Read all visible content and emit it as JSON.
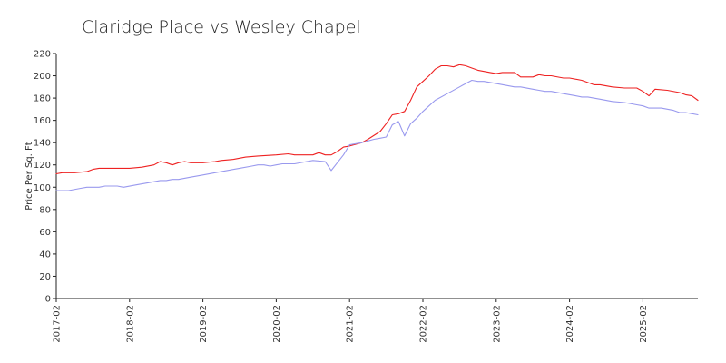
{
  "chart_data": {
    "type": "line",
    "title": "Claridge Place vs Wesley Chapel",
    "xlabel": "",
    "ylabel": "Price Per Sq. Ft",
    "ylim": [
      0,
      220
    ],
    "yticks": [
      0,
      20,
      40,
      60,
      80,
      100,
      120,
      140,
      160,
      180,
      200,
      220
    ],
    "x_tick_labels": [
      "2017-02",
      "2018-02",
      "2019-02",
      "2020-02",
      "2021-02",
      "2022-02",
      "2023-02",
      "2024-02",
      "2025-02"
    ],
    "x_tick_positions": [
      "2017-02",
      "2018-02",
      "2019-02",
      "2020-02",
      "2021-02",
      "2022-02",
      "2023-02",
      "2024-02",
      "2025-02"
    ],
    "x_range": [
      "2017-02",
      "2025-11"
    ],
    "grid": false,
    "legend": "none",
    "series": [
      {
        "color": "#ee2222",
        "points": [
          [
            "2017-02",
            112
          ],
          [
            "2017-03",
            113
          ],
          [
            "2017-05",
            113
          ],
          [
            "2017-07",
            114
          ],
          [
            "2017-08",
            116
          ],
          [
            "2017-09",
            117
          ],
          [
            "2017-12",
            117
          ],
          [
            "2018-02",
            117
          ],
          [
            "2018-04",
            118
          ],
          [
            "2018-06",
            120
          ],
          [
            "2018-07",
            123
          ],
          [
            "2018-08",
            122
          ],
          [
            "2018-09",
            120
          ],
          [
            "2018-10",
            122
          ],
          [
            "2018-11",
            123
          ],
          [
            "2018-12",
            122
          ],
          [
            "2019-02",
            122
          ],
          [
            "2019-04",
            123
          ],
          [
            "2019-05",
            124
          ],
          [
            "2019-07",
            125
          ],
          [
            "2019-09",
            127
          ],
          [
            "2019-11",
            128
          ],
          [
            "2020-02",
            129
          ],
          [
            "2020-04",
            130
          ],
          [
            "2020-05",
            129
          ],
          [
            "2020-08",
            129
          ],
          [
            "2020-09",
            131
          ],
          [
            "2020-10",
            129
          ],
          [
            "2020-11",
            129
          ],
          [
            "2020-12",
            132
          ],
          [
            "2021-01",
            136
          ],
          [
            "2021-02",
            137
          ],
          [
            "2021-04",
            140
          ],
          [
            "2021-05",
            143
          ],
          [
            "2021-07",
            150
          ],
          [
            "2021-08",
            157
          ],
          [
            "2021-09",
            165
          ],
          [
            "2021-10",
            166
          ],
          [
            "2021-11",
            168
          ],
          [
            "2021-12",
            178
          ],
          [
            "2022-01",
            190
          ],
          [
            "2022-02",
            195
          ],
          [
            "2022-03",
            200
          ],
          [
            "2022-04",
            206
          ],
          [
            "2022-05",
            209
          ],
          [
            "2022-06",
            209
          ],
          [
            "2022-07",
            208
          ],
          [
            "2022-08",
            210
          ],
          [
            "2022-09",
            209
          ],
          [
            "2022-10",
            207
          ],
          [
            "2022-11",
            205
          ],
          [
            "2023-01",
            203
          ],
          [
            "2023-02",
            202
          ],
          [
            "2023-03",
            203
          ],
          [
            "2023-05",
            203
          ],
          [
            "2023-06",
            199
          ],
          [
            "2023-08",
            199
          ],
          [
            "2023-09",
            201
          ],
          [
            "2023-10",
            200
          ],
          [
            "2023-11",
            200
          ],
          [
            "2024-01",
            198
          ],
          [
            "2024-02",
            198
          ],
          [
            "2024-04",
            196
          ],
          [
            "2024-06",
            192
          ],
          [
            "2024-07",
            192
          ],
          [
            "2024-09",
            190
          ],
          [
            "2024-11",
            189
          ],
          [
            "2025-01",
            189
          ],
          [
            "2025-02",
            186
          ],
          [
            "2025-03",
            182
          ],
          [
            "2025-04",
            188
          ],
          [
            "2025-06",
            187
          ],
          [
            "2025-08",
            185
          ],
          [
            "2025-09",
            183
          ],
          [
            "2025-10",
            182
          ],
          [
            "2025-11",
            178
          ]
        ]
      },
      {
        "color": "#9999ee",
        "points": [
          [
            "2017-02",
            97
          ],
          [
            "2017-04",
            97
          ],
          [
            "2017-06",
            99
          ],
          [
            "2017-07",
            100
          ],
          [
            "2017-09",
            100
          ],
          [
            "2017-10",
            101
          ],
          [
            "2017-12",
            101
          ],
          [
            "2018-01",
            100
          ],
          [
            "2018-03",
            102
          ],
          [
            "2018-05",
            104
          ],
          [
            "2018-07",
            106
          ],
          [
            "2018-08",
            106
          ],
          [
            "2018-09",
            107
          ],
          [
            "2018-10",
            107
          ],
          [
            "2018-12",
            109
          ],
          [
            "2019-02",
            111
          ],
          [
            "2019-05",
            114
          ],
          [
            "2019-08",
            117
          ],
          [
            "2019-10",
            119
          ],
          [
            "2019-11",
            120
          ],
          [
            "2019-12",
            120
          ],
          [
            "2020-01",
            119
          ],
          [
            "2020-02",
            120
          ],
          [
            "2020-03",
            121
          ],
          [
            "2020-05",
            121
          ],
          [
            "2020-07",
            123
          ],
          [
            "2020-08",
            124
          ],
          [
            "2020-10",
            123
          ],
          [
            "2020-11",
            115
          ],
          [
            "2020-12",
            122
          ],
          [
            "2021-01",
            129
          ],
          [
            "2021-02",
            138
          ],
          [
            "2021-04",
            140
          ],
          [
            "2021-06",
            143
          ],
          [
            "2021-07",
            144
          ],
          [
            "2021-08",
            145
          ],
          [
            "2021-09",
            156
          ],
          [
            "2021-10",
            159
          ],
          [
            "2021-11",
            146
          ],
          [
            "2021-12",
            157
          ],
          [
            "2022-01",
            162
          ],
          [
            "2022-02",
            168
          ],
          [
            "2022-03",
            173
          ],
          [
            "2022-04",
            178
          ],
          [
            "2022-06",
            184
          ],
          [
            "2022-08",
            190
          ],
          [
            "2022-10",
            196
          ],
          [
            "2022-11",
            195
          ],
          [
            "2022-12",
            195
          ],
          [
            "2023-02",
            193
          ],
          [
            "2023-04",
            191
          ],
          [
            "2023-05",
            190
          ],
          [
            "2023-06",
            190
          ],
          [
            "2023-08",
            188
          ],
          [
            "2023-09",
            187
          ],
          [
            "2023-10",
            186
          ],
          [
            "2023-11",
            186
          ],
          [
            "2024-01",
            184
          ],
          [
            "2024-03",
            182
          ],
          [
            "2024-04",
            181
          ],
          [
            "2024-05",
            181
          ],
          [
            "2024-07",
            179
          ],
          [
            "2024-09",
            177
          ],
          [
            "2024-11",
            176
          ],
          [
            "2025-01",
            174
          ],
          [
            "2025-02",
            173
          ],
          [
            "2025-03",
            171
          ],
          [
            "2025-05",
            171
          ],
          [
            "2025-07",
            169
          ],
          [
            "2025-08",
            167
          ],
          [
            "2025-09",
            167
          ],
          [
            "2025-11",
            165
          ]
        ]
      }
    ]
  }
}
